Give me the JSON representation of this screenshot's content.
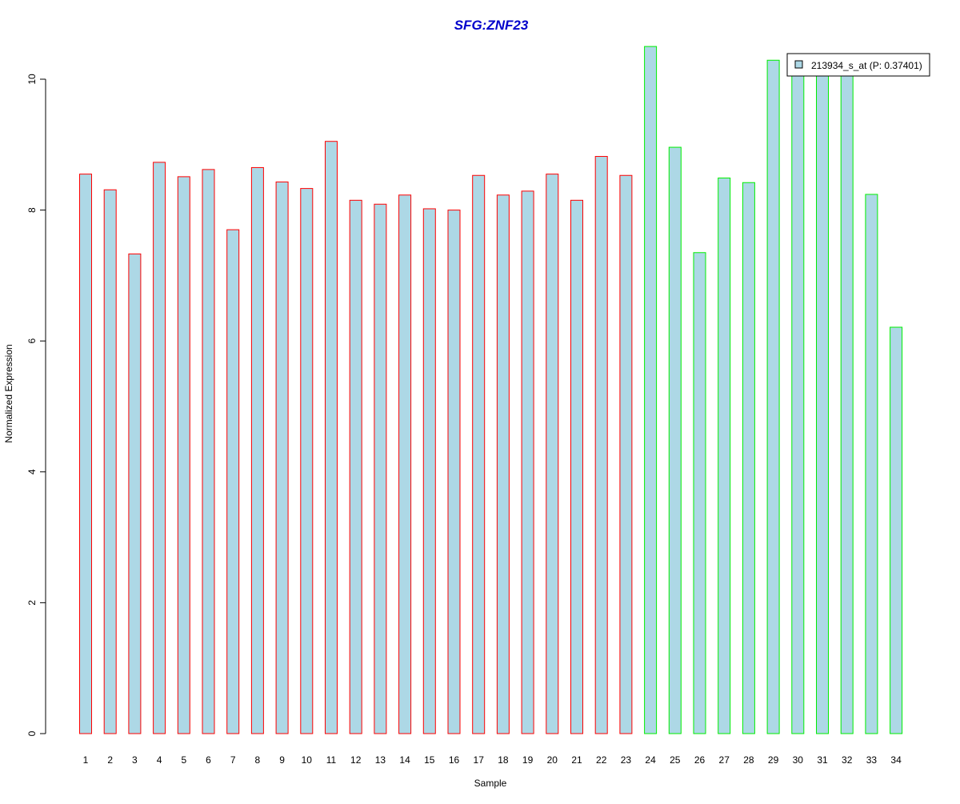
{
  "chart_data": {
    "type": "bar",
    "title": "SFG:ZNF23",
    "title_color": "#0000cc",
    "xlabel": "Sample",
    "ylabel": "Normalized Expression",
    "categories": [
      "1",
      "2",
      "3",
      "4",
      "5",
      "6",
      "7",
      "8",
      "9",
      "10",
      "11",
      "12",
      "13",
      "14",
      "15",
      "16",
      "17",
      "18",
      "19",
      "20",
      "21",
      "22",
      "23",
      "24",
      "25",
      "26",
      "27",
      "28",
      "29",
      "30",
      "31",
      "32",
      "33",
      "34"
    ],
    "series": [
      {
        "name": "213934_s_at (P: 0.37401)",
        "values": [
          8.55,
          8.31,
          7.33,
          8.73,
          8.51,
          8.62,
          7.7,
          8.65,
          8.43,
          8.33,
          9.05,
          8.15,
          8.09,
          8.23,
          8.02,
          8.0,
          8.53,
          8.23,
          8.29,
          8.55,
          8.15,
          8.82,
          8.53,
          10.5,
          8.96,
          7.35,
          8.49,
          8.42,
          10.29,
          10.1,
          10.2,
          10.15,
          8.24,
          6.21
        ]
      }
    ],
    "groups": [
      1,
      1,
      1,
      1,
      1,
      1,
      1,
      1,
      1,
      1,
      1,
      1,
      1,
      1,
      1,
      1,
      1,
      1,
      1,
      1,
      1,
      1,
      1,
      2,
      2,
      2,
      2,
      2,
      2,
      2,
      2,
      2,
      2,
      2
    ],
    "colors": {
      "bar_fill": "#add8e6",
      "group1_border": "#ff0000",
      "group2_border": "#00ee00"
    },
    "ylim": [
      0,
      10.5
    ],
    "yticks": [
      0,
      2,
      4,
      6,
      8,
      10
    ],
    "grid": false,
    "legend_position": "top-right"
  }
}
